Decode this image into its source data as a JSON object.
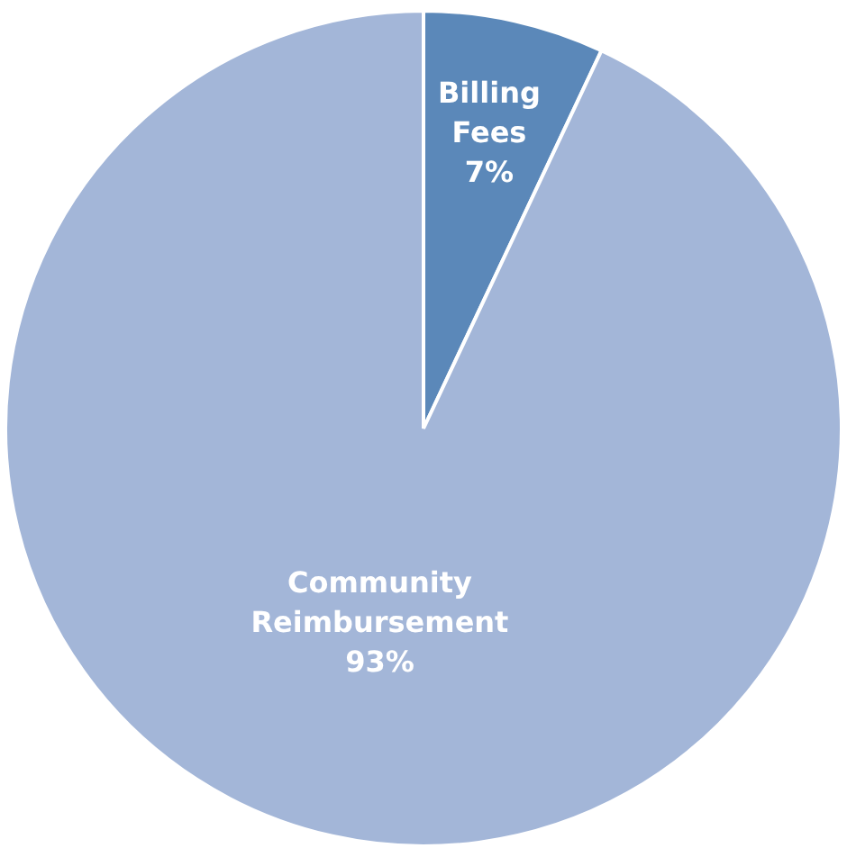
{
  "chart_data": {
    "type": "pie",
    "categories": [
      "Billing Fees",
      "Community Reimbursement"
    ],
    "values": [
      7,
      93
    ],
    "colors": [
      "#5b88b9",
      "#a3b6d8"
    ],
    "value_labels": [
      "7%",
      "93%"
    ],
    "legend": false
  }
}
